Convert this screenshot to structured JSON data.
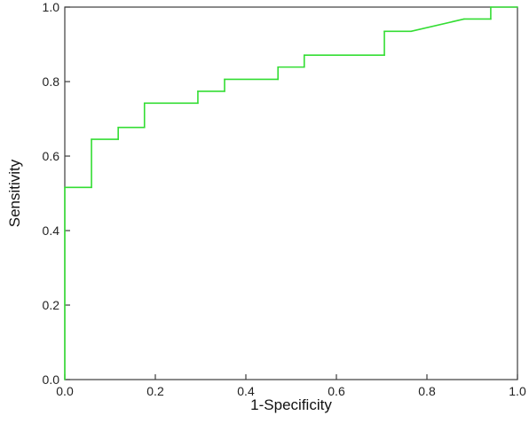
{
  "chart_data": {
    "type": "line",
    "title": "",
    "xlabel": "1-Specificity",
    "ylabel": "Sensitivity",
    "xlim": [
      0.0,
      1.0
    ],
    "ylim": [
      0.0,
      1.0
    ],
    "x_ticks": [
      "0.0",
      "0.2",
      "0.4",
      "0.6",
      "0.8",
      "1.0"
    ],
    "y_ticks": [
      "0.0",
      "0.2",
      "0.4",
      "0.6",
      "0.8",
      "1.0"
    ],
    "grid": false,
    "legend": "none",
    "series": [
      {
        "color": "#33dd33",
        "x": [
          0.0,
          0.0,
          0.059,
          0.059,
          0.118,
          0.118,
          0.176,
          0.176,
          0.294,
          0.294,
          0.353,
          0.353,
          0.471,
          0.471,
          0.529,
          0.529,
          0.706,
          0.706,
          0.765,
          0.882,
          0.941,
          0.941,
          1.0
        ],
        "y": [
          0.0,
          0.516,
          0.516,
          0.645,
          0.645,
          0.677,
          0.677,
          0.742,
          0.742,
          0.774,
          0.774,
          0.806,
          0.806,
          0.839,
          0.839,
          0.871,
          0.871,
          0.935,
          0.935,
          0.968,
          0.968,
          1.0,
          1.0
        ]
      }
    ]
  }
}
